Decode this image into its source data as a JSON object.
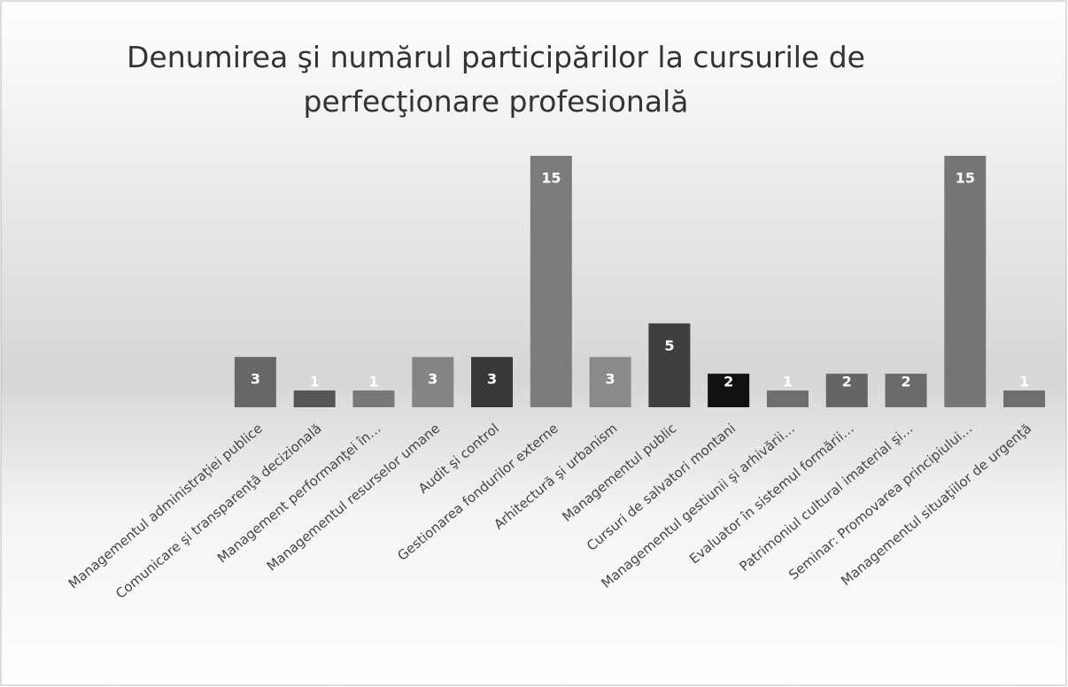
{
  "chart_data": {
    "type": "bar",
    "title": "Denumirea şi numărul participărilor la cursurile de perfecţionare profesională",
    "categories": [
      "Managementul administraţiei publice",
      "Comunicare şi transparenţă decizională",
      "Management performanţei în…",
      "Managementul resurselor umane",
      "Audit şi control",
      "Gestionarea fondurilor externe",
      "Arhitectură şi urbanism",
      "Managementul public",
      "Cursuri de salvatori montani",
      "Managementul gestiunii şi arhivării…",
      "Evaluator în sistemul formării…",
      "Patrimoniul cultural imaterial şi…",
      "Seminar: Promovarea principiului…",
      "Managementul situaţiilor de urgenţă"
    ],
    "values": [
      3,
      1,
      1,
      3,
      3,
      15,
      3,
      5,
      2,
      1,
      2,
      2,
      15,
      1
    ],
    "colors": [
      "#676767",
      "#555555",
      "#787878",
      "#858585",
      "#383838",
      "#7b7b7b",
      "#8a8a8a",
      "#3e3e3e",
      "#111111",
      "#6e6e6e",
      "#656565",
      "#6a6a6a",
      "#767676",
      "#6e6e6e"
    ],
    "ylim": [
      0,
      15
    ]
  }
}
